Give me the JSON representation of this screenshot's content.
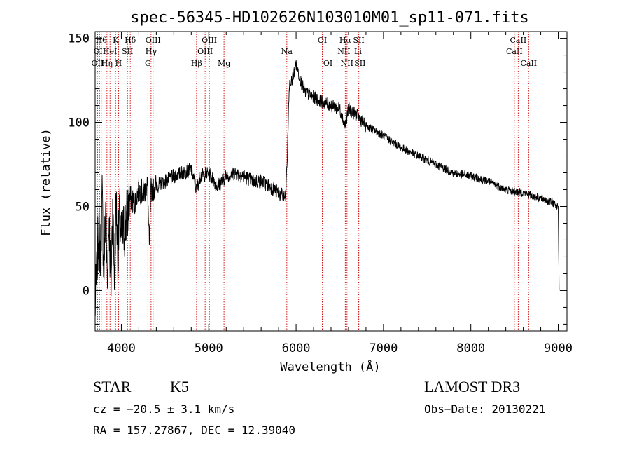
{
  "chart_data": {
    "type": "line",
    "title": "spec-56345-HD102626N103010M01_sp11-071.fits",
    "xlabel": "Wavelength (Å)",
    "ylabel": "Flux (relative)",
    "xlim": [
      3700,
      9100
    ],
    "ylim": [
      -24,
      154
    ],
    "x_ticks": [
      4000,
      5000,
      6000,
      7000,
      8000,
      9000
    ],
    "y_ticks": [
      0,
      50,
      100,
      150
    ],
    "grid": false,
    "series": [
      {
        "color": "#000000",
        "x": [
          3700,
          3720,
          3740,
          3760,
          3780,
          3800,
          3820,
          3840,
          3860,
          3880,
          3900,
          3920,
          3940,
          3960,
          3980,
          4000,
          4050,
          4100,
          4150,
          4200,
          4250,
          4300,
          4320,
          4340,
          4400,
          4500,
          4600,
          4700,
          4800,
          4860,
          4900,
          5000,
          5100,
          5200,
          5300,
          5400,
          5500,
          5600,
          5700,
          5800,
          5880,
          5900,
          5920,
          5950,
          5980,
          6000,
          6050,
          6100,
          6200,
          6300,
          6400,
          6500,
          6560,
          6600,
          6700,
          6800,
          7000,
          7200,
          7400,
          7600,
          7800,
          8000,
          8200,
          8400,
          8600,
          8800,
          8950,
          9000,
          9010
        ],
        "y": [
          -10,
          10,
          40,
          20,
          55,
          10,
          50,
          5,
          45,
          0,
          50,
          10,
          55,
          20,
          45,
          30,
          40,
          55,
          52,
          60,
          58,
          62,
          25,
          60,
          62,
          65,
          68,
          70,
          72,
          60,
          68,
          70,
          62,
          68,
          70,
          68,
          65,
          65,
          62,
          58,
          55,
          80,
          120,
          125,
          130,
          135,
          125,
          118,
          115,
          112,
          110,
          108,
          98,
          108,
          104,
          98,
          92,
          85,
          80,
          75,
          70,
          68,
          65,
          60,
          58,
          55,
          52,
          50,
          0
        ]
      }
    ],
    "lines": [
      {
        "wave": 3727,
        "label": "OII",
        "row": 2
      },
      {
        "wave": 3750,
        "label": "OII",
        "row": 1
      },
      {
        "wave": 3770,
        "label": "Hθ",
        "row": 0
      },
      {
        "wave": 3835,
        "label": "Hη",
        "row": 2
      },
      {
        "wave": 3870,
        "label": "HeI",
        "row": 1
      },
      {
        "wave": 3934,
        "label": "K",
        "row": 0
      },
      {
        "wave": 3968,
        "label": "H",
        "row": 2
      },
      {
        "wave": 4070,
        "label": "SII",
        "row": 1
      },
      {
        "wave": 4102,
        "label": "Hδ",
        "row": 0
      },
      {
        "wave": 4304,
        "label": "G",
        "row": 2
      },
      {
        "wave": 4340,
        "label": "Hγ",
        "row": 1
      },
      {
        "wave": 4363,
        "label": "OIII",
        "row": 0
      },
      {
        "wave": 4861,
        "label": "Hβ",
        "row": 2
      },
      {
        "wave": 4959,
        "label": "OIII",
        "row": 1
      },
      {
        "wave": 5007,
        "label": "OIII",
        "row": 0
      },
      {
        "wave": 5175,
        "label": "Mg",
        "row": 2
      },
      {
        "wave": 5894,
        "label": "Na",
        "row": 1
      },
      {
        "wave": 6300,
        "label": "OI",
        "row": 0
      },
      {
        "wave": 6364,
        "label": "OI",
        "row": 2
      },
      {
        "wave": 6548,
        "label": "NII",
        "row": 1
      },
      {
        "wave": 6563,
        "label": "Hα",
        "row": 0
      },
      {
        "wave": 6583,
        "label": "NII",
        "row": 2
      },
      {
        "wave": 6708,
        "label": "Li",
        "row": 1
      },
      {
        "wave": 6717,
        "label": "SII",
        "row": 0
      },
      {
        "wave": 6731,
        "label": "SII",
        "row": 2
      },
      {
        "wave": 8498,
        "label": "CaII",
        "row": 1
      },
      {
        "wave": 8542,
        "label": "CaII",
        "row": 0
      },
      {
        "wave": 8662,
        "label": "CaII",
        "row": 2
      }
    ]
  },
  "footer": {
    "class": "STAR",
    "subclass": "K5",
    "release": "LAMOST DR3",
    "redshift": "cz = −20.5 ± 3.1 km/s",
    "obs_date": "Obs−Date: 20130221",
    "coords": "RA = 157.27867, DEC =  12.39040"
  }
}
